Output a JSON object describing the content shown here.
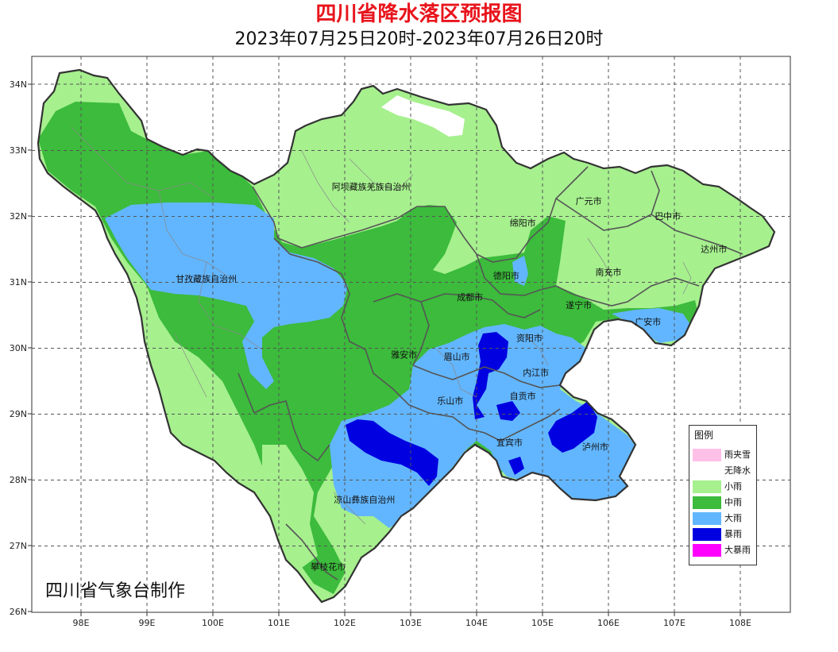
{
  "header": {
    "title": "四川省降水落区预报图",
    "subtitle": "2023年07月25日20时-2023年07月26日20时"
  },
  "axes": {
    "y_labels": [
      "34N",
      "33N",
      "32N",
      "31N",
      "30N",
      "29N",
      "28N",
      "27N",
      "26N"
    ],
    "x_labels": [
      "98E",
      "99E",
      "100E",
      "101E",
      "102E",
      "103E",
      "104E",
      "105E",
      "106E",
      "107E",
      "108E"
    ]
  },
  "cities": [
    {
      "name": "阿坝藏族羌族自治州",
      "lon": 102.4,
      "lat": 32.4
    },
    {
      "name": "广元市",
      "lon": 105.7,
      "lat": 32.18
    },
    {
      "name": "巴中市",
      "lon": 106.9,
      "lat": 31.95
    },
    {
      "name": "绵阳市",
      "lon": 104.7,
      "lat": 31.85
    },
    {
      "name": "达州市",
      "lon": 107.6,
      "lat": 31.45
    },
    {
      "name": "甘孜藏族自治州",
      "lon": 99.9,
      "lat": 31.0
    },
    {
      "name": "德阳市",
      "lon": 104.45,
      "lat": 31.05
    },
    {
      "name": "南充市",
      "lon": 106.0,
      "lat": 31.1
    },
    {
      "name": "成都市",
      "lon": 103.9,
      "lat": 30.72
    },
    {
      "name": "遂宁市",
      "lon": 105.55,
      "lat": 30.6
    },
    {
      "name": "广安市",
      "lon": 106.6,
      "lat": 30.35
    },
    {
      "name": "资阳市",
      "lon": 104.8,
      "lat": 30.1
    },
    {
      "name": "雅安市",
      "lon": 102.9,
      "lat": 29.85
    },
    {
      "name": "眉山市",
      "lon": 103.7,
      "lat": 29.82
    },
    {
      "name": "内江市",
      "lon": 104.9,
      "lat": 29.58
    },
    {
      "name": "乐山市",
      "lon": 103.6,
      "lat": 29.15
    },
    {
      "name": "自贡市",
      "lon": 104.7,
      "lat": 29.22
    },
    {
      "name": "宜宾市",
      "lon": 104.5,
      "lat": 28.52
    },
    {
      "name": "泸州市",
      "lon": 105.8,
      "lat": 28.45
    },
    {
      "name": "凉山彝族自治州",
      "lon": 102.3,
      "lat": 27.65
    },
    {
      "name": "攀枝花市",
      "lon": 101.75,
      "lat": 26.63
    }
  ],
  "credit": "四川省气象台制作",
  "legend": {
    "title": "图例",
    "items": [
      {
        "label": "雨夹雪",
        "color": "#ffc0e8"
      },
      {
        "label": "无降水",
        "color": "#ffffff"
      },
      {
        "label": "小雨",
        "color": "#a6f08e"
      },
      {
        "label": "中雨",
        "color": "#3cbb3c"
      },
      {
        "label": "大雨",
        "color": "#62b6ff"
      },
      {
        "label": "暴雨",
        "color": "#0000e0"
      },
      {
        "label": "大暴雨",
        "color": "#ff00ff"
      }
    ]
  }
}
